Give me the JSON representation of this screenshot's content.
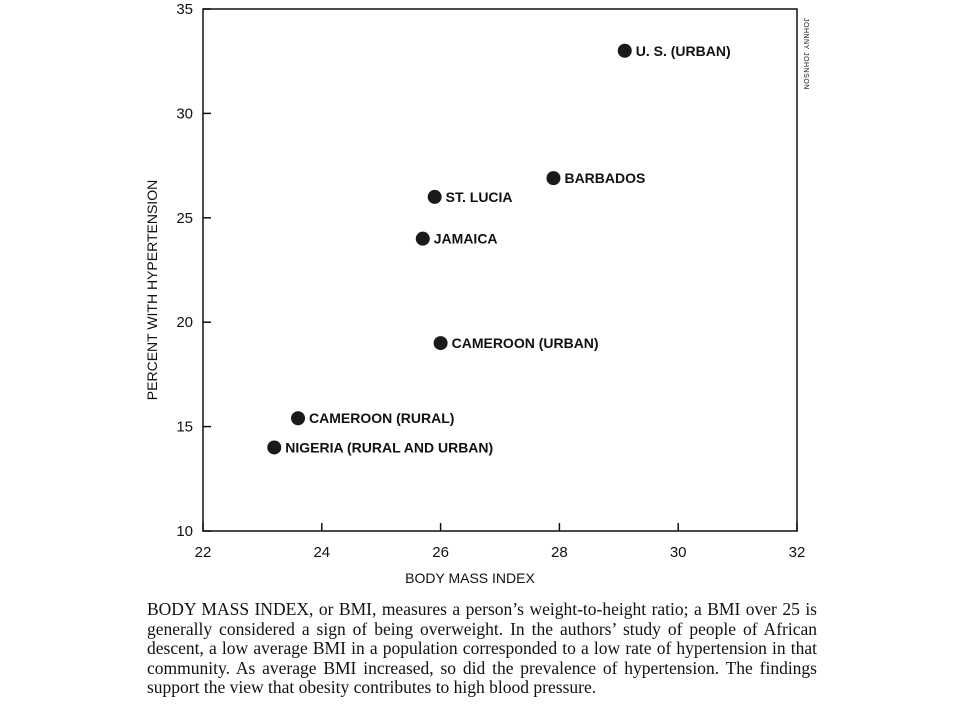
{
  "chart_data": {
    "type": "scatter",
    "xlabel": "BODY MASS INDEX",
    "ylabel": "PERCENT WITH HYPERTENSION",
    "xlim": [
      22,
      32
    ],
    "ylim": [
      10,
      35
    ],
    "x_ticks": [
      22,
      24,
      26,
      28,
      30,
      32
    ],
    "y_ticks": [
      10,
      15,
      20,
      25,
      30,
      35
    ],
    "grid": false,
    "point_color": "#1a1a1a",
    "points": [
      {
        "label": "U. S. (URBAN)",
        "x": 29.1,
        "y": 33.0
      },
      {
        "label": "BARBADOS",
        "x": 27.9,
        "y": 26.9
      },
      {
        "label": "ST. LUCIA",
        "x": 25.9,
        "y": 26.0
      },
      {
        "label": "JAMAICA",
        "x": 25.7,
        "y": 24.0
      },
      {
        "label": "CAMEROON (URBAN)",
        "x": 26.0,
        "y": 19.0
      },
      {
        "label": "CAMEROON (RURAL)",
        "x": 23.6,
        "y": 15.4
      },
      {
        "label": "NIGERIA (RURAL AND URBAN)",
        "x": 23.2,
        "y": 14.0
      }
    ]
  },
  "credit": "JOHNNY JOHNSON",
  "caption": "BODY MASS INDEX, or BMI, measures a person’s weight-to-height ratio; a BMI over 25 is generally considered a sign of being overweight. In the authors’ study of people of African descent, a low average BMI in a population corresponded to a low rate of hypertension in that community. As average BMI increased, so did the prevalence of hypertension. The findings support the view that obesity contributes to high blood pressure."
}
